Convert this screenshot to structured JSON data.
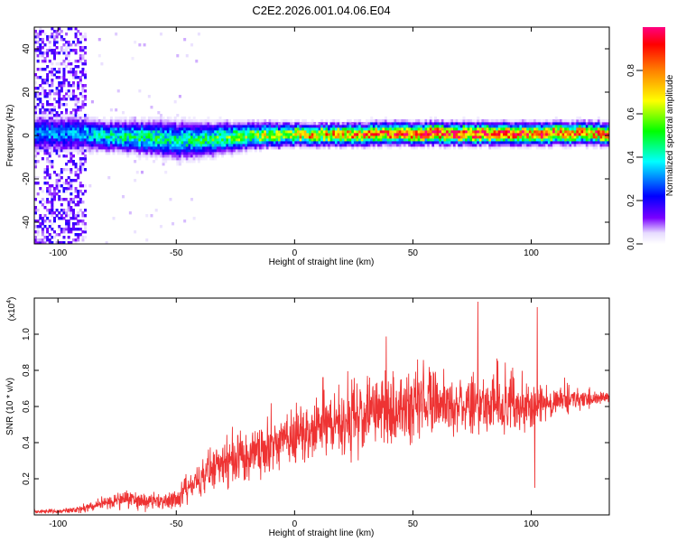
{
  "title": "C2E2.2026.001.04.06.E04",
  "chart_data": [
    {
      "type": "heatmap",
      "xlabel": "Height of straight line (km)",
      "ylabel": "Frequency (Hz)",
      "xlim": [
        -110,
        133
      ],
      "ylim": [
        -50,
        50
      ],
      "xticks": [
        -100,
        -50,
        0,
        50,
        100
      ],
      "yticks": [
        -40,
        -20,
        0,
        20,
        40
      ],
      "colorbar": {
        "label": "Normalized spectral amplitude",
        "range": [
          0,
          1
        ],
        "ticks": [
          "0.0",
          "0.2",
          "0.4",
          "0.6",
          "0.8"
        ],
        "tick_values": [
          0.0,
          0.2,
          0.4,
          0.6,
          0.8
        ]
      },
      "ridge": {
        "description": "dominant frequency ridge near 0 Hz",
        "x": [
          -95,
          -80,
          -60,
          -50,
          -40,
          -30,
          -20,
          0,
          20,
          40,
          60,
          80,
          100,
          120,
          133
        ],
        "center_hz": [
          1,
          0,
          -1,
          -2,
          -2,
          -1,
          0,
          0.5,
          0.5,
          1,
          1,
          1,
          1,
          1,
          1
        ],
        "amplitude": [
          0.3,
          0.4,
          0.45,
          0.4,
          0.45,
          0.5,
          0.55,
          0.7,
          0.75,
          0.85,
          0.9,
          0.9,
          0.85,
          0.8,
          0.85
        ],
        "width_hz": [
          4,
          3.5,
          4,
          4.5,
          4,
          3.5,
          3,
          2.5,
          2.5,
          2.5,
          2.5,
          2.5,
          2.5,
          2.5,
          2.5
        ]
      },
      "noise_region": {
        "x": [
          -110,
          -88
        ],
        "description": "broadband noise across all frequencies"
      }
    },
    {
      "type": "line",
      "xlabel": "Height of straight line (km)",
      "ylabel": "SNR (10 * v/v)",
      "multiplier": "(x10",
      "multiplier_exp": "4",
      "multiplier_close": ")",
      "xlim": [
        -110,
        133
      ],
      "ylim": [
        0,
        1.2
      ],
      "xticks": [
        -100,
        -50,
        0,
        50,
        100
      ],
      "yticks": [
        "0.2",
        "0.4",
        "0.6",
        "0.8",
        "1.0"
      ],
      "ytick_values": [
        0.2,
        0.4,
        0.6,
        0.8,
        1.0
      ],
      "color": "#ee3333",
      "envelope": {
        "x": [
          -110,
          -100,
          -90,
          -80,
          -70,
          -60,
          -50,
          -45,
          -40,
          -35,
          -30,
          -20,
          -10,
          0,
          10,
          20,
          30,
          40,
          50,
          60,
          70,
          80,
          90,
          100,
          110,
          120,
          133
        ],
        "mean": [
          0.02,
          0.02,
          0.03,
          0.07,
          0.09,
          0.07,
          0.09,
          0.15,
          0.2,
          0.26,
          0.28,
          0.33,
          0.38,
          0.43,
          0.48,
          0.52,
          0.56,
          0.58,
          0.6,
          0.61,
          0.61,
          0.61,
          0.6,
          0.62,
          0.62,
          0.64,
          0.65
        ],
        "spread": [
          0.01,
          0.01,
          0.02,
          0.03,
          0.05,
          0.04,
          0.05,
          0.07,
          0.1,
          0.11,
          0.1,
          0.12,
          0.12,
          0.15,
          0.15,
          0.17,
          0.18,
          0.18,
          0.17,
          0.16,
          0.15,
          0.14,
          0.13,
          0.12,
          0.08,
          0.05,
          0.03
        ]
      },
      "peaks": [
        {
          "x": 77.5,
          "y": 1.18
        },
        {
          "x": 102.5,
          "y": 1.15
        },
        {
          "x": 101.5,
          "y": 0.15
        },
        {
          "x": -24,
          "y": 0.44
        },
        {
          "x": 12,
          "y": 0.76
        },
        {
          "x": 52,
          "y": 0.86
        }
      ]
    }
  ]
}
